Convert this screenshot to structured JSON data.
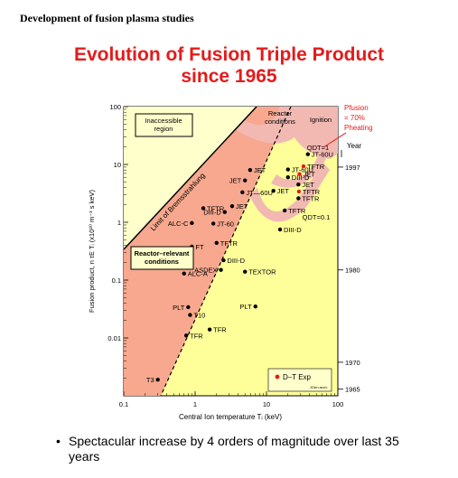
{
  "header": {
    "text": "Development of fusion plasma studies"
  },
  "title": {
    "line1": "Evolution of Fusion Triple Product",
    "line2": "since 1965"
  },
  "bullet": {
    "text": "Spectacular increase by 4 orders of magnitude over last 35 years"
  },
  "chart_data": {
    "type": "scatter",
    "xlabel": "Central Ion temperature Tᵢ (keV)",
    "ylabel": "Fusion product, n τE Tᵢ (x10²⁰ m⁻³ s keV)",
    "xscale": "log",
    "yscale": "log",
    "xlim": [
      0.1,
      100
    ],
    "ylim": [
      0.001,
      100
    ],
    "xticks": [
      "0.1",
      "1",
      "10",
      "100"
    ],
    "yticks": [
      "0.01",
      "0.1",
      "1",
      "10",
      "100"
    ],
    "year_axis": {
      "label": "Year",
      "ticks": [
        {
          "year": "1997",
          "y": 9.0
        },
        {
          "year": "1980",
          "y": 0.15
        },
        {
          "year": "1970",
          "y": 0.0038
        },
        {
          "year": "1965",
          "y": 0.0013
        }
      ]
    },
    "regions": {
      "inaccessible": "Inaccessible region",
      "reactor": "Reactor conditions",
      "ignition": "Ignition",
      "reactor_relevant": "Reactor–relevant conditions",
      "bremsstrahlung": "Limit of Bremsstrahlung",
      "qdt1": "QDT=1",
      "qdt01": "QDT=0.1",
      "pfusion": "Pfusion",
      "pfusion_eq": "= 70%",
      "pheating": "Pheating"
    },
    "legend": {
      "dt_label": "D–T Exp",
      "source": "JGen.acr/c"
    },
    "points": [
      {
        "label": "T3",
        "x": 0.3,
        "y": 0.0019,
        "dt": false
      },
      {
        "label": "TFR",
        "x": 0.75,
        "y": 0.011,
        "dt": false
      },
      {
        "label": "T10",
        "x": 0.85,
        "y": 0.025,
        "dt": false
      },
      {
        "label": "PLT",
        "x": 0.8,
        "y": 0.034,
        "dt": false
      },
      {
        "label": "TFR",
        "x": 1.6,
        "y": 0.014,
        "dt": false
      },
      {
        "label": "ALC-A",
        "x": 0.7,
        "y": 0.13,
        "dt": false
      },
      {
        "label": "ASDEX",
        "x": 2.3,
        "y": 0.15,
        "dt": false
      },
      {
        "label": "DIII-D",
        "x": 2.5,
        "y": 0.22,
        "dt": false
      },
      {
        "label": "TEXTOR",
        "x": 5.0,
        "y": 0.14,
        "dt": false
      },
      {
        "label": "PLT",
        "x": 7.0,
        "y": 0.035,
        "dt": false
      },
      {
        "label": "FT",
        "x": 0.9,
        "y": 0.38,
        "dt": false
      },
      {
        "label": "TFTR",
        "x": 2.0,
        "y": 0.44,
        "dt": false
      },
      {
        "label": "ALC-C",
        "x": 0.9,
        "y": 0.97,
        "dt": false
      },
      {
        "label": "JT-60",
        "x": 1.8,
        "y": 0.95,
        "dt": false
      },
      {
        "label": "TFTR",
        "x": 1.3,
        "y": 1.75,
        "dt": false
      },
      {
        "label": "DIII-D",
        "x": 2.6,
        "y": 1.5,
        "dt": false
      },
      {
        "label": "JET",
        "x": 3.3,
        "y": 1.9,
        "dt": false
      },
      {
        "label": "JT—60U",
        "x": 4.6,
        "y": 3.3,
        "dt": false
      },
      {
        "label": "JET",
        "x": 5.0,
        "y": 5.3,
        "dt": false
      },
      {
        "label": "JET",
        "x": 5.9,
        "y": 8.0,
        "dt": false
      },
      {
        "label": "JET",
        "x": 12.5,
        "y": 3.5,
        "dt": false
      },
      {
        "label": "TFTR",
        "x": 18.0,
        "y": 1.6,
        "dt": false
      },
      {
        "label": "DIII-D",
        "x": 15.5,
        "y": 0.75,
        "dt": false
      },
      {
        "label": "DIII-D",
        "x": 20.0,
        "y": 6.0,
        "dt": false
      },
      {
        "label": "JT-60U",
        "x": 20.0,
        "y": 8.2,
        "dt": false
      },
      {
        "label": "JET",
        "x": 28.0,
        "y": 4.5,
        "dt": false
      },
      {
        "label": "TFTR",
        "x": 28.0,
        "y": 2.6,
        "dt": false
      },
      {
        "label": "TFTR",
        "x": 33.0,
        "y": 9.3,
        "dt": true
      },
      {
        "label": "JET",
        "x": 29.0,
        "y": 6.8,
        "dt": true
      },
      {
        "label": "TFTR",
        "x": 28.5,
        "y": 3.4,
        "dt": true
      },
      {
        "label": "JT-60U",
        "x": 38.0,
        "y": 15.0,
        "dt": false
      }
    ]
  }
}
